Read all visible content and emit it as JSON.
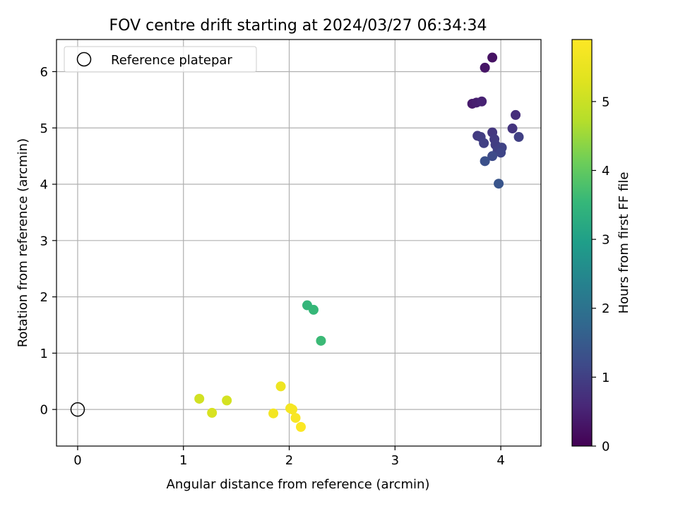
{
  "chart_data": {
    "type": "scatter",
    "title": "FOV centre drift starting at 2024/03/27 06:34:34",
    "xlabel": "Angular distance from reference (arcmin)",
    "ylabel": "Rotation from reference (arcmin)",
    "xlim": [
      -0.2,
      4.38
    ],
    "ylim": [
      -0.65,
      6.57
    ],
    "xticks": [
      0,
      1,
      2,
      3,
      4
    ],
    "yticks": [
      0,
      1,
      2,
      3,
      4,
      5,
      6
    ],
    "grid": true,
    "legend": {
      "placement": "top-left",
      "entries": [
        "Reference platepar"
      ]
    },
    "reference_point": {
      "x": 0,
      "y": 0
    },
    "colorbar": {
      "label": "Hours from first FF file",
      "range": [
        0,
        5.9
      ],
      "ticks": [
        0,
        1,
        2,
        3,
        4,
        5
      ],
      "colormap": "viridis"
    },
    "points": [
      {
        "x": 3.92,
        "y": 6.25,
        "c": 0.25
      },
      {
        "x": 3.85,
        "y": 6.07,
        "c": 0.3
      },
      {
        "x": 3.73,
        "y": 5.43,
        "c": 0.4
      },
      {
        "x": 3.77,
        "y": 5.45,
        "c": 0.45
      },
      {
        "x": 3.82,
        "y": 5.47,
        "c": 0.5
      },
      {
        "x": 4.14,
        "y": 5.23,
        "c": 0.7
      },
      {
        "x": 4.11,
        "y": 4.99,
        "c": 0.8
      },
      {
        "x": 3.92,
        "y": 4.92,
        "c": 0.85
      },
      {
        "x": 3.78,
        "y": 4.86,
        "c": 0.9
      },
      {
        "x": 3.81,
        "y": 4.84,
        "c": 0.95
      },
      {
        "x": 4.17,
        "y": 4.84,
        "c": 1.0
      },
      {
        "x": 3.94,
        "y": 4.8,
        "c": 0.9
      },
      {
        "x": 3.84,
        "y": 4.73,
        "c": 1.0
      },
      {
        "x": 3.95,
        "y": 4.7,
        "c": 0.95
      },
      {
        "x": 4.01,
        "y": 4.65,
        "c": 1.05
      },
      {
        "x": 3.97,
        "y": 4.6,
        "c": 1.0
      },
      {
        "x": 4.0,
        "y": 4.56,
        "c": 1.1
      },
      {
        "x": 3.92,
        "y": 4.5,
        "c": 1.2
      },
      {
        "x": 3.85,
        "y": 4.41,
        "c": 1.3
      },
      {
        "x": 3.98,
        "y": 4.01,
        "c": 1.4
      },
      {
        "x": 2.17,
        "y": 1.85,
        "c": 3.5
      },
      {
        "x": 2.23,
        "y": 1.77,
        "c": 3.55
      },
      {
        "x": 2.3,
        "y": 1.22,
        "c": 3.6
      },
      {
        "x": 1.15,
        "y": 0.19,
        "c": 5.1
      },
      {
        "x": 1.41,
        "y": 0.16,
        "c": 5.15
      },
      {
        "x": 1.27,
        "y": -0.06,
        "c": 5.2
      },
      {
        "x": 1.92,
        "y": 0.41,
        "c": 5.6
      },
      {
        "x": 2.01,
        "y": 0.02,
        "c": 5.7
      },
      {
        "x": 2.03,
        "y": 0.0,
        "c": 5.75
      },
      {
        "x": 1.85,
        "y": -0.07,
        "c": 5.7
      },
      {
        "x": 2.06,
        "y": -0.15,
        "c": 5.8
      },
      {
        "x": 2.11,
        "y": -0.31,
        "c": 5.85
      }
    ]
  }
}
